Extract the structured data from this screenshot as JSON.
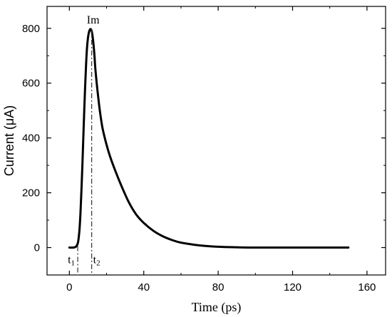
{
  "chart_data": {
    "type": "line",
    "xlabel": "Time (ps)",
    "ylabel": "Current (μA)",
    "xlim": [
      -12,
      170
    ],
    "ylim": [
      -100,
      880
    ],
    "xticks": [
      0,
      40,
      80,
      120,
      160
    ],
    "yticks": [
      0,
      200,
      400,
      600,
      800
    ],
    "grid": false,
    "series": [
      {
        "color": "#000000",
        "x": [
          0,
          2,
          3.5,
          4.5,
          5,
          5.5,
          6,
          6.5,
          7,
          7.5,
          8,
          8.5,
          9,
          9.5,
          10,
          10.5,
          11,
          11.5,
          12,
          12.5,
          13,
          13.5,
          14,
          15,
          16,
          17,
          18,
          20,
          22,
          25,
          28,
          32,
          36,
          40,
          45,
          50,
          55,
          60,
          70,
          80,
          90,
          100,
          120,
          150
        ],
        "y": [
          0,
          0,
          3,
          15,
          35,
          70,
          130,
          210,
          300,
          400,
          500,
          590,
          670,
          730,
          765,
          785,
          795,
          797,
          790,
          770,
          740,
          700,
          650,
          580,
          520,
          470,
          430,
          375,
          330,
          275,
          225,
          165,
          120,
          90,
          62,
          42,
          28,
          18,
          8,
          3,
          1,
          0,
          0,
          0
        ]
      }
    ],
    "annotations": {
      "peak_label": "Im",
      "t1_main": "t",
      "t1_sub": "1",
      "t2_main": "t",
      "t2_sub": "2",
      "t1_x": 4.5,
      "t2_x": 12,
      "peak_x": 12,
      "peak_y": 797
    }
  }
}
